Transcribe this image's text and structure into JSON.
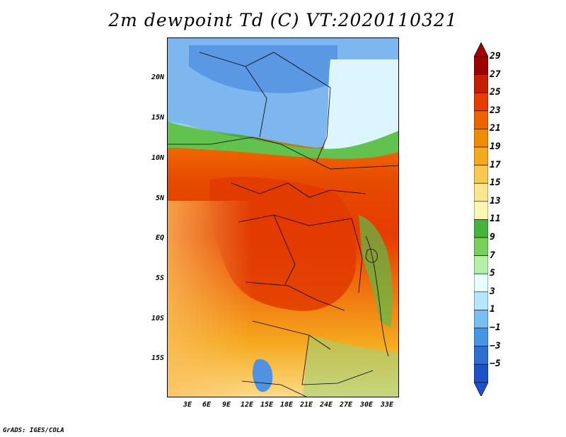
{
  "title": "2m dewpoint Td (C) VT:2020110321",
  "footer": "GrADS: IGES/COLA",
  "y_axis_labels": [
    "20N",
    "15N",
    "10N",
    "5N",
    "EQ",
    "5S",
    "10S",
    "15S"
  ],
  "x_axis_labels": [
    "3E",
    "6E",
    "9E",
    "12E",
    "15E",
    "18E",
    "21E",
    "24E",
    "27E",
    "30E",
    "33E"
  ],
  "colorbar": {
    "labels": [
      "29",
      "27",
      "25",
      "23",
      "21",
      "19",
      "17",
      "15",
      "13",
      "11",
      "9",
      "7",
      "5",
      "3",
      "1",
      "−1",
      "−3",
      "−5"
    ],
    "colors": [
      "#a00000",
      "#c81e00",
      "#e63c00",
      "#f06400",
      "#f08c00",
      "#f5aa1e",
      "#fac850",
      "#fae68c",
      "#fff5b4",
      "#46b43c",
      "#78d25a",
      "#b4f0aa",
      "#e6ffff",
      "#b4e6ff",
      "#78bef0",
      "#4696e6",
      "#2d6ed2",
      "#1e50c8"
    ]
  }
}
